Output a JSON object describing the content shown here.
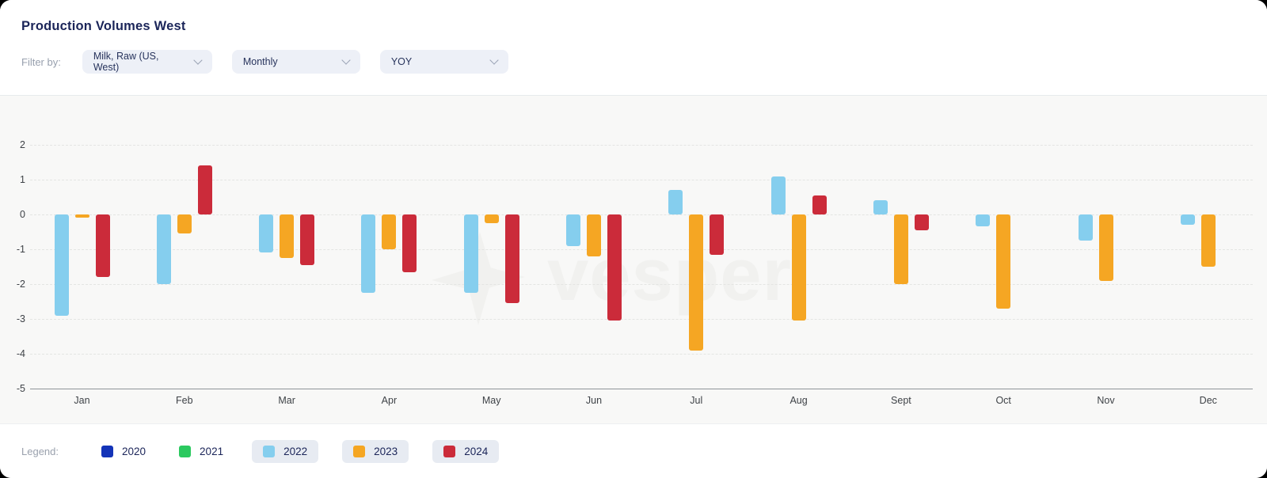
{
  "header": {
    "title": "Production Volumes West",
    "filter_label": "Filter by:",
    "filters": [
      {
        "label": "Milk, Raw (US, West)"
      },
      {
        "label": "Monthly"
      },
      {
        "label": "YOY"
      }
    ]
  },
  "watermark": {
    "text": "vesper"
  },
  "legend": {
    "label": "Legend:",
    "items": [
      {
        "year": "2020",
        "color": "#1434B8",
        "active": false
      },
      {
        "year": "2021",
        "color": "#2BC95F",
        "active": false
      },
      {
        "year": "2022",
        "color": "#85CEEE",
        "active": true
      },
      {
        "year": "2023",
        "color": "#F5A623",
        "active": true
      },
      {
        "year": "2024",
        "color": "#CB2B3A",
        "active": true
      }
    ]
  },
  "chart_data": {
    "type": "bar",
    "title": "Production Volumes West",
    "categories": [
      "Jan",
      "Feb",
      "Mar",
      "Apr",
      "May",
      "Jun",
      "Jul",
      "Aug",
      "Sept",
      "Oct",
      "Nov",
      "Dec"
    ],
    "series": [
      {
        "name": "2022",
        "color": "#85CEEE",
        "values": [
          -2.9,
          -2.0,
          -1.1,
          -2.25,
          -2.25,
          -0.9,
          0.7,
          1.1,
          0.4,
          -0.35,
          -0.75,
          -0.3
        ]
      },
      {
        "name": "2023",
        "color": "#F5A623",
        "values": [
          -0.1,
          -0.55,
          -1.25,
          -1.0,
          -0.25,
          -1.2,
          -3.9,
          -3.05,
          -2.0,
          -2.7,
          -1.9,
          -1.5
        ]
      },
      {
        "name": "2024",
        "color": "#CB2B3A",
        "values": [
          -1.8,
          1.4,
          -1.45,
          -1.65,
          -2.55,
          -3.05,
          -1.15,
          0.55,
          -0.45,
          null,
          null,
          null
        ]
      }
    ],
    "hidden_series": [
      "2020",
      "2021"
    ],
    "y_ticks": [
      2,
      1,
      0,
      -1,
      -2,
      -3,
      -4,
      -5
    ],
    "ylim": [
      -5,
      2.5
    ],
    "xlabel": "",
    "ylabel": "",
    "grid": "horizontal-dashed",
    "legend_position": "bottom"
  }
}
